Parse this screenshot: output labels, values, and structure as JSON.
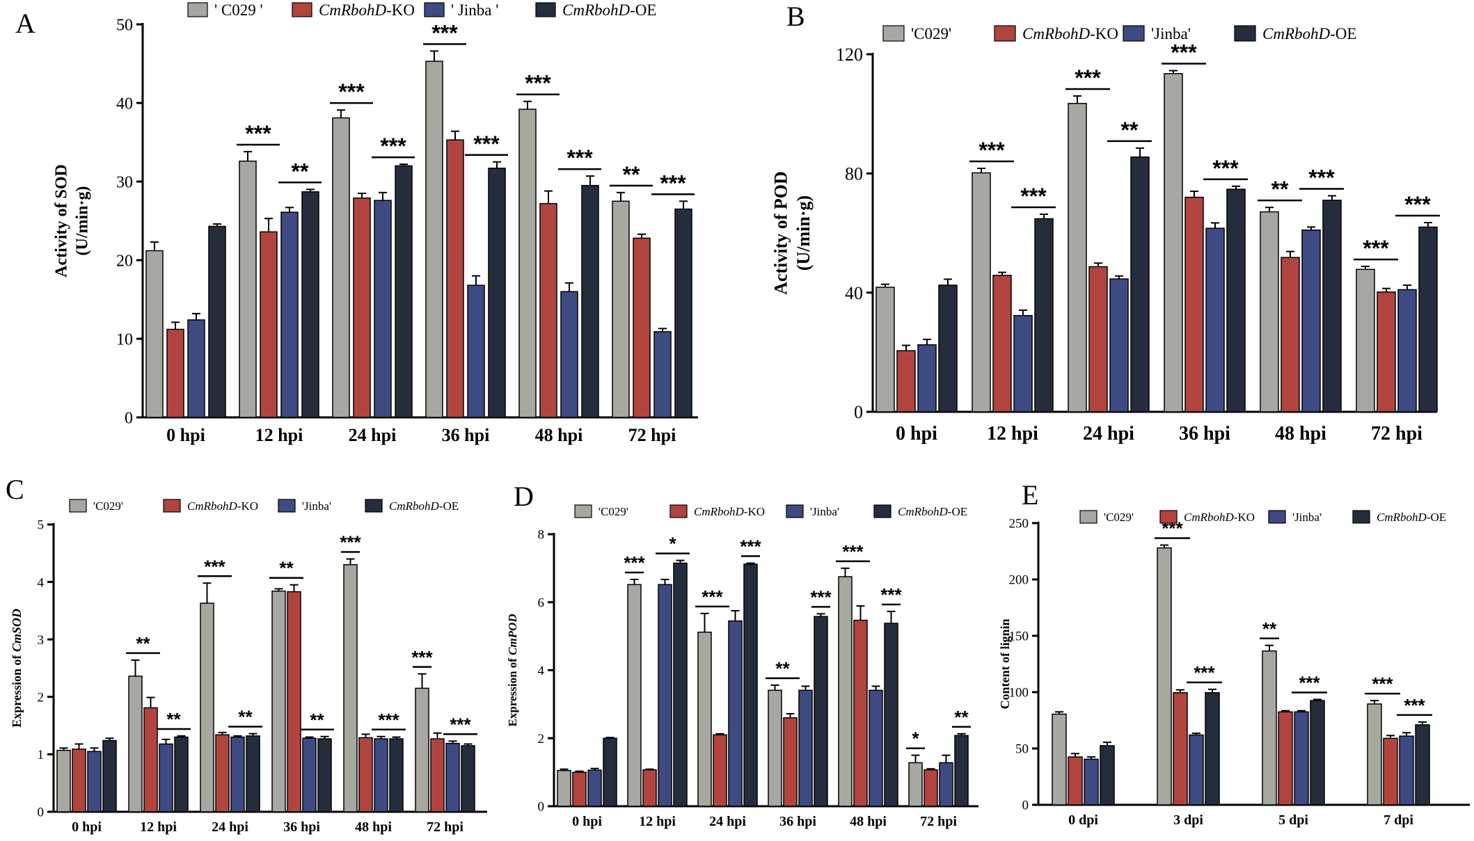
{
  "colors": {
    "C029": "#a8a8a3",
    "KO": "#b2443f",
    "Jinba": "#3e4a82",
    "OE": "#252d3d"
  },
  "chart_data": [
    {
      "panel": "A",
      "type": "bar",
      "ylabel_lines": [
        "Activity of SOD",
        "(U/min·g)"
      ],
      "ylim": [
        0,
        50
      ],
      "yticks": [
        0,
        10,
        20,
        30,
        40,
        50
      ],
      "categories": [
        "0 hpi",
        "12 hpi",
        "24 hpi",
        "36 hpi",
        "48 hpi",
        "72 hpi"
      ],
      "legend": [
        {
          "pre": "' C029 '",
          "ital": "",
          "post": ""
        },
        {
          "pre": "",
          "ital": "CmRbohD",
          "post": "-KO"
        },
        {
          "pre": "' Jinba '",
          "ital": "",
          "post": ""
        },
        {
          "pre": "",
          "ital": "CmRbohD",
          "post": "-OE"
        }
      ],
      "series": [
        {
          "name": "' C029 '",
          "values": [
            21.2,
            32.6,
            38.1,
            45.3,
            39.2,
            27.5
          ],
          "errors": [
            1.1,
            1.2,
            1.0,
            1.3,
            1.0,
            1.1
          ]
        },
        {
          "name": "CmRbohD-KO",
          "values": [
            11.2,
            23.6,
            27.9,
            35.3,
            27.2,
            22.8
          ],
          "errors": [
            0.9,
            1.7,
            0.6,
            1.1,
            1.6,
            0.5
          ]
        },
        {
          "name": "' Jinba '",
          "values": [
            12.4,
            26.1,
            27.6,
            16.8,
            16.0,
            10.9
          ],
          "errors": [
            0.8,
            0.6,
            1.0,
            1.2,
            1.1,
            0.4
          ]
        },
        {
          "name": "CmRbohD-OE",
          "values": [
            24.3,
            28.7,
            32.0,
            31.7,
            29.5,
            26.5
          ],
          "errors": [
            0.3,
            0.3,
            0.2,
            0.8,
            1.2,
            1.0
          ]
        }
      ],
      "significance": [
        {
          "group": 1,
          "from": 0,
          "to": 1,
          "label": "***"
        },
        {
          "group": 1,
          "from": 2,
          "to": 3,
          "label": "**"
        },
        {
          "group": 2,
          "from": 0,
          "to": 1,
          "label": "***"
        },
        {
          "group": 2,
          "from": 2,
          "to": 3,
          "label": "***"
        },
        {
          "group": 3,
          "from": 0,
          "to": 1,
          "label": "***"
        },
        {
          "group": 3,
          "from": 2,
          "to": 3,
          "label": "***"
        },
        {
          "group": 4,
          "from": 0,
          "to": 1,
          "label": "***"
        },
        {
          "group": 4,
          "from": 2,
          "to": 3,
          "label": "***"
        },
        {
          "group": 5,
          "from": 0,
          "to": 1,
          "label": "**"
        },
        {
          "group": 5,
          "from": 2,
          "to": 3,
          "label": "***"
        }
      ]
    },
    {
      "panel": "B",
      "type": "bar",
      "ylabel_lines": [
        "Activity of POD",
        "(U/min·g)"
      ],
      "ylim": [
        0,
        120
      ],
      "yticks": [
        0,
        40,
        80,
        120
      ],
      "categories": [
        "0 hpi",
        "12 hpi",
        "24 hpi",
        "36 hpi",
        "48 hpi",
        "72 hpi"
      ],
      "legend": [
        {
          "pre": "'C029'",
          "ital": "",
          "post": ""
        },
        {
          "pre": "",
          "ital": "CmRbohD",
          "post": "-KO"
        },
        {
          "pre": "'Jinba'",
          "ital": "",
          "post": ""
        },
        {
          "pre": "",
          "ital": "CmRbohD",
          "post": "-OE"
        }
      ],
      "series": [
        {
          "name": "'C029'",
          "values": [
            41.8,
            80.2,
            103.5,
            113.5,
            67.1,
            47.8
          ],
          "errors": [
            1.0,
            1.5,
            2.5,
            1.0,
            1.5,
            1.0
          ]
        },
        {
          "name": "CmRbohD-KO",
          "values": [
            20.5,
            45.8,
            48.7,
            72.0,
            51.8,
            40.2
          ],
          "errors": [
            1.8,
            1.0,
            1.2,
            2.0,
            2.0,
            1.2
          ]
        },
        {
          "name": "'Jinba'",
          "values": [
            22.5,
            32.3,
            44.6,
            61.6,
            61.0,
            41.0
          ],
          "errors": [
            1.8,
            1.8,
            1.0,
            1.8,
            1.0,
            1.5
          ]
        },
        {
          "name": "CmRbohD-OE",
          "values": [
            42.5,
            64.8,
            85.5,
            74.7,
            71.0,
            62.0
          ],
          "errors": [
            2.0,
            1.5,
            3.0,
            1.0,
            1.5,
            1.5
          ]
        }
      ],
      "significance": [
        {
          "group": 1,
          "from": 0,
          "to": 1,
          "label": "***"
        },
        {
          "group": 1,
          "from": 2,
          "to": 3,
          "label": "***"
        },
        {
          "group": 2,
          "from": 0,
          "to": 1,
          "label": "***"
        },
        {
          "group": 2,
          "from": 2,
          "to": 3,
          "label": "**"
        },
        {
          "group": 3,
          "from": 0,
          "to": 1,
          "label": "***"
        },
        {
          "group": 3,
          "from": 2,
          "to": 3,
          "label": "***"
        },
        {
          "group": 4,
          "from": 0,
          "to": 1,
          "label": "**"
        },
        {
          "group": 4,
          "from": 2,
          "to": 3,
          "label": "***"
        },
        {
          "group": 5,
          "from": 0,
          "to": 1,
          "label": "***"
        },
        {
          "group": 5,
          "from": 2,
          "to": 3,
          "label": "***"
        }
      ]
    },
    {
      "panel": "C",
      "type": "bar",
      "ylabel_pre": "Expression of ",
      "ylabel_ital": "CmSOD",
      "ylim": [
        0,
        5
      ],
      "yticks": [
        0,
        1,
        2,
        3,
        4,
        5
      ],
      "categories": [
        "0 hpi",
        "12 hpi",
        "24 hpi",
        "36 hpi",
        "48 hpi",
        "72 hpi"
      ],
      "legend": [
        {
          "pre": "'C029'",
          "ital": "",
          "post": ""
        },
        {
          "pre": "",
          "ital": "CmRbohD",
          "post": "-KO"
        },
        {
          "pre": "'Jinba'",
          "ital": "",
          "post": ""
        },
        {
          "pre": "",
          "ital": "CmRbohD",
          "post": "-OE"
        }
      ],
      "series": [
        {
          "name": "'C029'",
          "values": [
            1.07,
            2.36,
            3.63,
            3.84,
            4.3,
            2.15
          ],
          "errors": [
            0.04,
            0.28,
            0.35,
            0.04,
            0.1,
            0.25
          ]
        },
        {
          "name": "CmRbohD-KO",
          "values": [
            1.09,
            1.81,
            1.34,
            3.83,
            1.29,
            1.27
          ],
          "errors": [
            0.09,
            0.18,
            0.04,
            0.12,
            0.06,
            0.1
          ]
        },
        {
          "name": "'Jinba'",
          "values": [
            1.05,
            1.18,
            1.3,
            1.28,
            1.27,
            1.19
          ],
          "errors": [
            0.06,
            0.08,
            0.02,
            0.02,
            0.04,
            0.04
          ]
        },
        {
          "name": "CmRbohD-OE",
          "values": [
            1.24,
            1.3,
            1.32,
            1.27,
            1.27,
            1.15
          ],
          "errors": [
            0.04,
            0.02,
            0.04,
            0.04,
            0.03,
            0.03
          ]
        }
      ],
      "significance": [
        {
          "group": 1,
          "from": 0,
          "to": 1,
          "label": "**"
        },
        {
          "group": 1,
          "from": 2,
          "to": 3,
          "label": "**"
        },
        {
          "group": 2,
          "from": 0,
          "to": 1,
          "label": "***"
        },
        {
          "group": 2,
          "from": 2,
          "to": 3,
          "label": "**"
        },
        {
          "group": 3,
          "from": 0,
          "to": 1,
          "label": "**"
        },
        {
          "group": 3,
          "from": 2,
          "to": 3,
          "label": "**"
        },
        {
          "group": 4,
          "from": 0,
          "to": 0,
          "label": "***"
        },
        {
          "group": 4,
          "from": 2,
          "to": 3,
          "label": "***"
        },
        {
          "group": 5,
          "from": 0,
          "to": 0,
          "label": "***"
        },
        {
          "group": 5,
          "from": 2,
          "to": 3,
          "label": "***"
        }
      ]
    },
    {
      "panel": "D",
      "type": "bar",
      "ylabel_pre": "Expression of ",
      "ylabel_ital": "CmPOD",
      "ylim": [
        0,
        8
      ],
      "yticks": [
        0,
        2,
        4,
        6,
        8
      ],
      "categories": [
        "0 hpi",
        "12 hpi",
        "24 hpi",
        "36 hpi",
        "48 hpi",
        "72 hpi"
      ],
      "legend": [
        {
          "pre": "'C029'",
          "ital": "",
          "post": ""
        },
        {
          "pre": "",
          "ital": "CmRbohD",
          "post": "-KO"
        },
        {
          "pre": "'Jinba'",
          "ital": "",
          "post": ""
        },
        {
          "pre": "",
          "ital": "CmRbohD",
          "post": "-OE"
        }
      ],
      "series": [
        {
          "name": "'C029'",
          "values": [
            1.05,
            6.52,
            5.12,
            3.41,
            6.75,
            1.28
          ],
          "errors": [
            0.04,
            0.15,
            0.55,
            0.15,
            0.25,
            0.22
          ]
        },
        {
          "name": "CmRbohD-KO",
          "values": [
            1.0,
            1.07,
            2.1,
            2.6,
            5.47,
            1.07
          ],
          "errors": [
            0.03,
            0.02,
            0.03,
            0.12,
            0.42,
            0.03
          ]
        },
        {
          "name": "'Jinba'",
          "values": [
            1.06,
            6.52,
            5.45,
            3.41,
            3.41,
            1.28
          ],
          "errors": [
            0.05,
            0.15,
            0.3,
            0.12,
            0.12,
            0.22
          ]
        },
        {
          "name": "CmRbohD-OE",
          "values": [
            2.0,
            7.15,
            7.12,
            5.58,
            5.38,
            2.08
          ],
          "errors": [
            0.02,
            0.08,
            0.03,
            0.08,
            0.35,
            0.05
          ]
        }
      ],
      "significance": [
        {
          "group": 1,
          "from": 0,
          "to": 0,
          "label": "***"
        },
        {
          "group": 1,
          "from": 2,
          "to": 3,
          "label": "*"
        },
        {
          "group": 2,
          "from": 0,
          "to": 1,
          "label": "***"
        },
        {
          "group": 2,
          "from": 3,
          "to": 3,
          "label": "***"
        },
        {
          "group": 3,
          "from": 0,
          "to": 1,
          "label": "**"
        },
        {
          "group": 3,
          "from": 3,
          "to": 3,
          "label": "***"
        },
        {
          "group": 4,
          "from": 0,
          "to": 1,
          "label": "***"
        },
        {
          "group": 4,
          "from": 3,
          "to": 3,
          "label": "***"
        },
        {
          "group": 5,
          "from": 0,
          "to": 0,
          "label": "*"
        },
        {
          "group": 5,
          "from": 3,
          "to": 3,
          "label": "**"
        }
      ]
    },
    {
      "panel": "E",
      "type": "bar",
      "ylabel_pre": "Content of lignin",
      "ylabel_ital": "",
      "ylim": [
        0,
        250
      ],
      "yticks": [
        0,
        50,
        100,
        150,
        200,
        250
      ],
      "categories": [
        "0 dpi",
        "3 dpi",
        "5 dpi",
        "7 dpi"
      ],
      "legend": [
        {
          "pre": "'C029'",
          "ital": "",
          "post": ""
        },
        {
          "pre": "",
          "ital": "CmRbohD",
          "post": "-KO"
        },
        {
          "pre": "'Jinba'",
          "ital": "",
          "post": ""
        },
        {
          "pre": "",
          "ital": "CmRbohD",
          "post": "-OE"
        }
      ],
      "series": [
        {
          "name": "'C029'",
          "values": [
            80.5,
            228.0,
            136.5,
            89.5
          ],
          "errors": [
            2.0,
            2.5,
            5.0,
            3.0
          ]
        },
        {
          "name": "CmRbohD-KO",
          "values": [
            42.5,
            99.5,
            82.5,
            59.0
          ],
          "errors": [
            3.0,
            2.5,
            1.0,
            2.5
          ]
        },
        {
          "name": "'Jinba'",
          "values": [
            40.5,
            62.0,
            82.5,
            61.0
          ],
          "errors": [
            2.0,
            1.5,
            1.0,
            3.0
          ]
        },
        {
          "name": "CmRbohD-OE",
          "values": [
            52.5,
            99.5,
            92.5,
            71.0
          ],
          "errors": [
            3.0,
            3.0,
            1.0,
            2.5
          ]
        }
      ],
      "significance": [
        {
          "group": 1,
          "from": 0,
          "to": 1,
          "label": "***"
        },
        {
          "group": 1,
          "from": 2,
          "to": 3,
          "label": "***"
        },
        {
          "group": 2,
          "from": 0,
          "to": 0,
          "label": "**"
        },
        {
          "group": 2,
          "from": 2,
          "to": 3,
          "label": "***"
        },
        {
          "group": 3,
          "from": 0,
          "to": 1,
          "label": "***"
        },
        {
          "group": 3,
          "from": 2,
          "to": 3,
          "label": "***"
        }
      ]
    }
  ],
  "panel_labels": [
    "A",
    "B",
    "C",
    "D",
    "E"
  ]
}
